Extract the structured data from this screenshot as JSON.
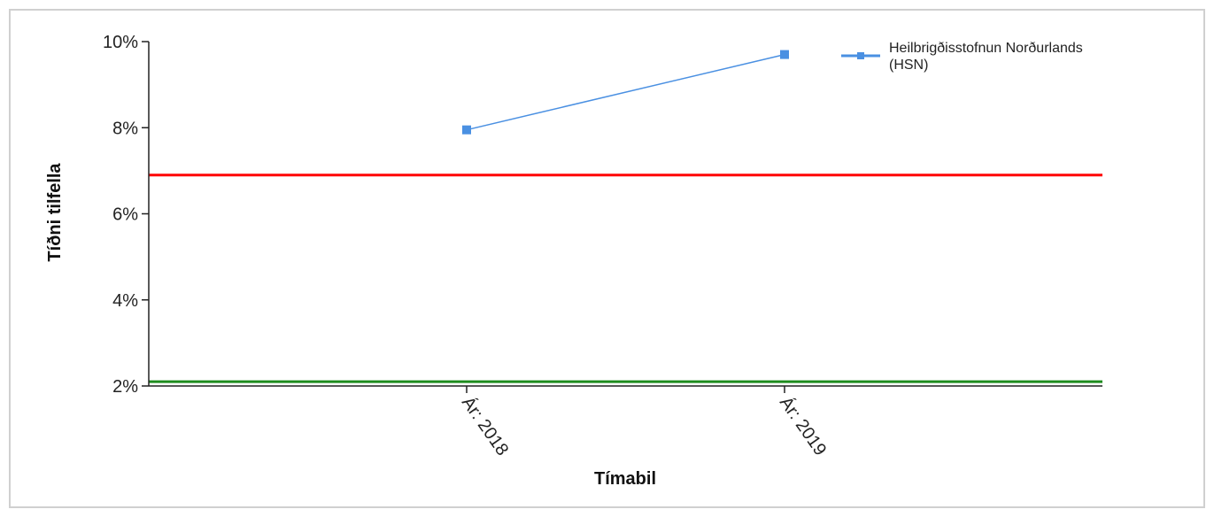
{
  "chart_data": {
    "type": "line",
    "title": "",
    "xlabel": "Tímabil",
    "ylabel": "Tíðni tilfella",
    "categories": [
      "Ár: 2018",
      "Ár: 2019"
    ],
    "y_ticks": [
      "2%",
      "4%",
      "6%",
      "8%",
      "10%"
    ],
    "ylim": [
      2,
      10
    ],
    "y_unit": "%",
    "grid": false,
    "legend_position": "top-right",
    "series": [
      {
        "name": "Heilbrigðisstofnun Norðurlands (HSN)",
        "legend_lines": [
          "Heilbrigðisstofnun Norðurlands",
          "(HSN)"
        ],
        "values": [
          7.95,
          9.7
        ],
        "color": "#4a90e2"
      }
    ],
    "reference_lines": [
      {
        "value": 6.9,
        "color": "#ff0000"
      },
      {
        "value": 2.1,
        "color": "#1e8c1e"
      }
    ]
  }
}
